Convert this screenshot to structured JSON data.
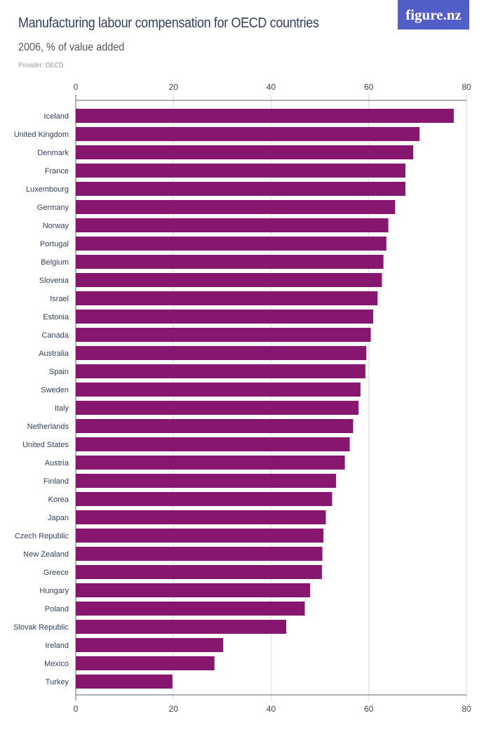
{
  "header": {
    "title": "Manufacturing labour compensation for OECD countries",
    "subtitle": "2006, % of value added",
    "provider": "Provider: OECD",
    "logo": "figure.nz"
  },
  "colors": {
    "bar": "#87176e",
    "logo_bg": "#525ec8",
    "title": "#34405e"
  },
  "chart_data": {
    "type": "bar",
    "orientation": "horizontal",
    "title": "Manufacturing labour compensation for OECD countries",
    "subtitle": "2006, % of value added",
    "xlabel": "",
    "ylabel": "",
    "xlim": [
      0,
      80
    ],
    "ticks": [
      "0",
      "20",
      "40",
      "60",
      "80"
    ],
    "tick_values": [
      0,
      20,
      40,
      60,
      80
    ],
    "grid": true,
    "categories": [
      "Iceland",
      "United Kingdom",
      "Denmark",
      "France",
      "Luxembourg",
      "Germany",
      "Norway",
      "Portugal",
      "Belgium",
      "Slovenia",
      "Israel",
      "Estonia",
      "Canada",
      "Australia",
      "Spain",
      "Sweden",
      "Italy",
      "Netherlands",
      "United States",
      "Austria",
      "Finland",
      "Korea",
      "Japan",
      "Czech Republic",
      "New Zealand",
      "Greece",
      "Hungary",
      "Poland",
      "Slovak Republic",
      "Ireland",
      "Mexico",
      "Turkey"
    ],
    "values": [
      77.4,
      70.4,
      69.1,
      67.5,
      67.5,
      65.4,
      64.0,
      63.6,
      63.0,
      62.7,
      61.8,
      60.9,
      60.4,
      59.5,
      59.3,
      58.3,
      57.9,
      56.8,
      56.1,
      55.1,
      53.3,
      52.5,
      51.2,
      50.7,
      50.5,
      50.4,
      48.0,
      46.9,
      43.1,
      30.2,
      28.4,
      19.8
    ]
  }
}
